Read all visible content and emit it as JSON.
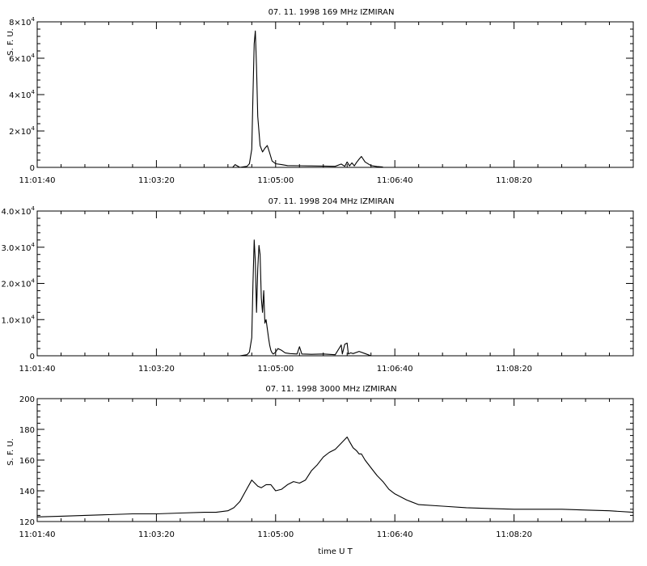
{
  "chart_data": [
    {
      "type": "line",
      "title": "07. 11. 1998    169 MHz    IZMIRAN",
      "ylabel": "S. F. U.",
      "xlabel": "",
      "xlim": [
        "11:01:40",
        "11:10:00"
      ],
      "ylim": [
        0,
        80000
      ],
      "x_ticks": [
        "11:01:40",
        "11:03:20",
        "11:05:00",
        "11:06:40",
        "11:08:20"
      ],
      "y_ticks": [
        {
          "value": 0,
          "mant": "0",
          "exp": ""
        },
        {
          "value": 20000,
          "mant": "2×10",
          "exp": "4"
        },
        {
          "value": 40000,
          "mant": "4×10",
          "exp": "4"
        },
        {
          "value": 60000,
          "mant": "6×10",
          "exp": "4"
        },
        {
          "value": 80000,
          "mant": "8×10",
          "exp": "4"
        }
      ],
      "grid": false,
      "series": [
        {
          "x": [
            "11:04:24",
            "11:04:26",
            "11:04:30",
            "11:04:33",
            "11:04:36",
            "11:04:38",
            "11:04:40",
            "11:04:41",
            "11:04:42",
            "11:04:43",
            "11:04:44",
            "11:04:45",
            "11:04:47",
            "11:04:49",
            "11:04:51",
            "11:04:53",
            "11:04:55",
            "11:04:57",
            "11:05:00",
            "11:05:05",
            "11:05:10",
            "11:05:20",
            "11:05:30",
            "11:05:40",
            "11:05:50",
            "11:05:55",
            "11:05:58",
            "11:06:00",
            "11:06:02",
            "11:06:04",
            "11:06:06",
            "11:06:08",
            "11:06:10",
            "11:06:12",
            "11:06:15",
            "11:06:20",
            "11:06:25",
            "11:06:30"
          ],
          "y": [
            0,
            1500,
            0,
            300,
            600,
            2000,
            10000,
            40000,
            68000,
            75000,
            55000,
            28000,
            12000,
            8500,
            10500,
            12000,
            8000,
            3500,
            2000,
            1500,
            1000,
            900,
            800,
            700,
            600,
            1800,
            600,
            3000,
            800,
            2500,
            800,
            2800,
            4500,
            6000,
            3000,
            1000,
            500,
            200
          ]
        }
      ]
    },
    {
      "type": "line",
      "title": "07. 11. 1998    204 MHz    IZMIRAN",
      "ylabel": "",
      "xlabel": "",
      "xlim": [
        "11:01:40",
        "11:10:00"
      ],
      "ylim": [
        0,
        40000
      ],
      "x_ticks": [
        "11:01:40",
        "11:03:20",
        "11:05:00",
        "11:06:40",
        "11:08:20"
      ],
      "y_ticks": [
        {
          "value": 0,
          "mant": "0",
          "exp": ""
        },
        {
          "value": 10000,
          "mant": "1.0×10",
          "exp": "4"
        },
        {
          "value": 20000,
          "mant": "2.0×10",
          "exp": "4"
        },
        {
          "value": 30000,
          "mant": "3.0×10",
          "exp": "4"
        },
        {
          "value": 40000,
          "mant": "4.0×10",
          "exp": "4"
        }
      ],
      "grid": false,
      "series": [
        {
          "x": [
            "11:04:30",
            "11:04:36",
            "11:04:38",
            "11:04:40",
            "11:04:41",
            "11:04:42",
            "11:04:43",
            "11:04:44",
            "11:04:45",
            "11:04:46",
            "11:04:47",
            "11:04:48",
            "11:04:49",
            "11:04:50",
            "11:04:51",
            "11:04:52",
            "11:04:53",
            "11:04:54",
            "11:04:55",
            "11:04:56",
            "11:04:57",
            "11:04:58",
            "11:05:00",
            "11:05:02",
            "11:05:05",
            "11:05:08",
            "11:05:12",
            "11:05:18",
            "11:05:20",
            "11:05:22",
            "11:05:30",
            "11:05:40",
            "11:05:50",
            "11:05:55",
            "11:05:56",
            "11:05:58",
            "11:06:00",
            "11:06:01",
            "11:06:03",
            "11:06:05",
            "11:06:10",
            "11:06:15",
            "11:06:20"
          ],
          "y": [
            0,
            300,
            1000,
            5000,
            20000,
            32000,
            26000,
            12000,
            24000,
            30500,
            28000,
            16000,
            12000,
            18000,
            9000,
            10000,
            7500,
            5000,
            3000,
            1500,
            800,
            500,
            1000,
            2000,
            1500,
            800,
            600,
            500,
            2500,
            500,
            400,
            500,
            300,
            3000,
            500,
            3200,
            3500,
            500,
            800,
            600,
            1200,
            600,
            0
          ]
        }
      ]
    },
    {
      "type": "line",
      "title": "07. 11. 1998    3000 MHz    IZMIRAN",
      "ylabel": "S. F. U.",
      "xlabel": "time  U T",
      "xlim": [
        "11:01:40",
        "11:10:00"
      ],
      "ylim": [
        120,
        200
      ],
      "x_ticks": [
        "11:01:40",
        "11:03:20",
        "11:05:00",
        "11:06:40",
        "11:08:20"
      ],
      "y_ticks": [
        {
          "value": 120,
          "mant": "120",
          "exp": ""
        },
        {
          "value": 140,
          "mant": "140",
          "exp": ""
        },
        {
          "value": 160,
          "mant": "160",
          "exp": ""
        },
        {
          "value": 180,
          "mant": "180",
          "exp": ""
        },
        {
          "value": 200,
          "mant": "200",
          "exp": ""
        }
      ],
      "grid": false,
      "series": [
        {
          "x": [
            "11:01:40",
            "11:02:00",
            "11:02:20",
            "11:02:40",
            "11:03:00",
            "11:03:20",
            "11:03:40",
            "11:04:00",
            "11:04:10",
            "11:04:20",
            "11:04:25",
            "11:04:30",
            "11:04:35",
            "11:04:40",
            "11:04:45",
            "11:04:48",
            "11:04:52",
            "11:04:56",
            "11:05:00",
            "11:05:05",
            "11:05:10",
            "11:05:15",
            "11:05:20",
            "11:05:25",
            "11:05:30",
            "11:05:35",
            "11:05:40",
            "11:05:45",
            "11:05:50",
            "11:05:55",
            "11:06:00",
            "11:06:02",
            "11:06:05",
            "11:06:08",
            "11:06:10",
            "11:06:12",
            "11:06:15",
            "11:06:20",
            "11:06:25",
            "11:06:30",
            "11:06:35",
            "11:06:40",
            "11:06:50",
            "11:07:00",
            "11:07:20",
            "11:07:40",
            "11:08:00",
            "11:08:20",
            "11:08:40",
            "11:09:00",
            "11:09:20",
            "11:09:40",
            "11:10:00"
          ],
          "y": [
            123,
            123.5,
            124,
            124.5,
            125,
            125,
            125.5,
            126,
            126,
            127,
            129,
            133,
            140,
            147,
            143,
            142,
            144,
            144,
            140,
            141,
            144,
            146,
            145,
            147,
            153,
            157,
            162,
            165,
            167,
            171,
            175,
            172,
            168,
            166,
            164,
            164,
            160,
            155,
            150,
            146,
            141,
            138,
            134,
            131,
            130,
            129,
            128.5,
            128,
            128,
            128,
            127.5,
            127,
            126
          ]
        }
      ]
    }
  ]
}
